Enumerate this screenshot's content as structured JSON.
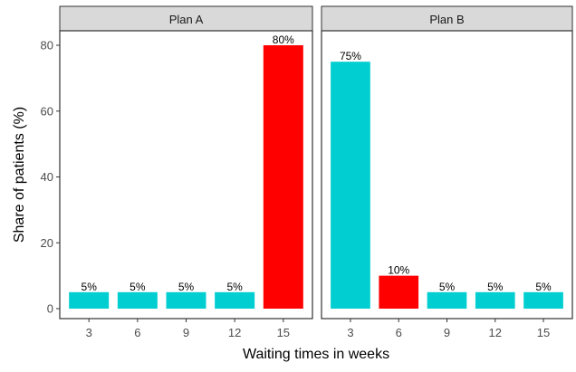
{
  "chart_data": {
    "type": "bar",
    "facet_by": "plan",
    "xlabel": "Waiting times in weeks",
    "ylabel": "Share of patients (%)",
    "ylim": [
      0,
      84
    ],
    "yticks": [
      0,
      20,
      40,
      60,
      80
    ],
    "categories": [
      "3",
      "6",
      "9",
      "12",
      "15"
    ],
    "grid": false,
    "colors": {
      "normal": "#00CED1",
      "highlight": "#FF0000"
    },
    "panels": [
      {
        "name": "Plan A",
        "values": [
          5,
          5,
          5,
          5,
          80
        ],
        "labels": [
          "5%",
          "5%",
          "5%",
          "5%",
          "80%"
        ],
        "highlight": [
          false,
          false,
          false,
          false,
          true
        ]
      },
      {
        "name": "Plan B",
        "values": [
          75,
          10,
          5,
          5,
          5
        ],
        "labels": [
          "75%",
          "10%",
          "5%",
          "5%",
          "5%"
        ],
        "highlight": [
          false,
          true,
          false,
          false,
          false
        ]
      }
    ]
  }
}
